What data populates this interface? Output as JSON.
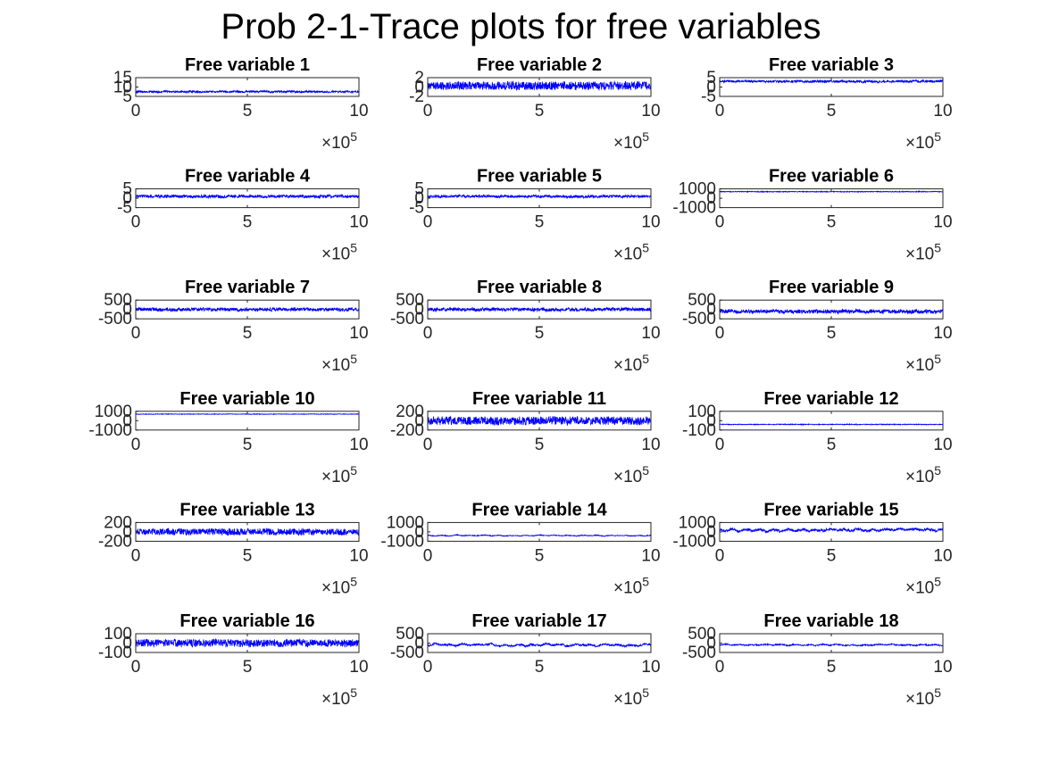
{
  "title": "Prob 2-1-Trace plots for free variables",
  "colors": {
    "trace": "#0000ff",
    "axes": "#262626",
    "text": "#000000"
  },
  "x_tick_labels": [
    "0",
    "5",
    "10"
  ],
  "x_exponent": {
    "base": "×10",
    "power": "5"
  },
  "chart_data": [
    {
      "type": "line",
      "title": "Free variable 1",
      "xlim": [
        0,
        10
      ],
      "ylim": [
        5,
        15
      ],
      "yticks": [
        "15",
        "10",
        "5"
      ],
      "level": 7.5,
      "amplitude": 0.5,
      "wander": 0.2
    },
    {
      "type": "line",
      "title": "Free variable 2",
      "xlim": [
        0,
        10
      ],
      "ylim": [
        -2,
        2
      ],
      "yticks": [
        "2",
        "0",
        "-2"
      ],
      "level": 0.3,
      "amplitude": 0.9,
      "wander": 0.1
    },
    {
      "type": "line",
      "title": "Free variable 3",
      "xlim": [
        0,
        10
      ],
      "ylim": [
        -5,
        5
      ],
      "yticks": [
        "5",
        "0",
        "-5"
      ],
      "level": 3,
      "amplitude": 0.6,
      "wander": 0.2
    },
    {
      "type": "line",
      "title": "Free variable 4",
      "xlim": [
        0,
        10
      ],
      "ylim": [
        -5,
        5
      ],
      "yticks": [
        "5",
        "0",
        "-5"
      ],
      "level": 1,
      "amplitude": 0.8,
      "wander": 0.2
    },
    {
      "type": "line",
      "title": "Free variable 5",
      "xlim": [
        0,
        10
      ],
      "ylim": [
        -5,
        5
      ],
      "yticks": [
        "5",
        "0",
        "-5"
      ],
      "level": 1,
      "amplitude": 0.7,
      "wander": 0.2
    },
    {
      "type": "line",
      "title": "Free variable 6",
      "xlim": [
        0,
        10
      ],
      "ylim": [
        -1000,
        1000
      ],
      "yticks": [
        "1000",
        "0",
        "-1000"
      ],
      "level": 700,
      "amplitude": 40,
      "wander": 10
    },
    {
      "type": "line",
      "title": "Free variable 7",
      "xlim": [
        0,
        10
      ],
      "ylim": [
        -500,
        500
      ],
      "yticks": [
        "500",
        "0",
        "-500"
      ],
      "level": 0,
      "amplitude": 90,
      "wander": 20
    },
    {
      "type": "line",
      "title": "Free variable 8",
      "xlim": [
        0,
        10
      ],
      "ylim": [
        -500,
        500
      ],
      "yticks": [
        "500",
        "0",
        "-500"
      ],
      "level": 0,
      "amplitude": 90,
      "wander": 20
    },
    {
      "type": "line",
      "title": "Free variable 9",
      "xlim": [
        0,
        10
      ],
      "ylim": [
        -500,
        500
      ],
      "yticks": [
        "500",
        "0",
        "-500"
      ],
      "level": -100,
      "amplitude": 100,
      "wander": 40
    },
    {
      "type": "line",
      "title": "Free variable 10",
      "xlim": [
        0,
        10
      ],
      "ylim": [
        -1000,
        1000
      ],
      "yticks": [
        "1000",
        "0",
        "-1000"
      ],
      "level": 700,
      "amplitude": 30,
      "wander": 10
    },
    {
      "type": "line",
      "title": "Free variable 11",
      "xlim": [
        0,
        10
      ],
      "ylim": [
        -200,
        200
      ],
      "yticks": [
        "200",
        "0",
        "-200"
      ],
      "level": 0,
      "amplitude": 90,
      "wander": 10
    },
    {
      "type": "line",
      "title": "Free variable 12",
      "xlim": [
        0,
        10
      ],
      "ylim": [
        -100,
        100
      ],
      "yticks": [
        "100",
        "0",
        "-100"
      ],
      "level": -40,
      "amplitude": 4,
      "wander": 1
    },
    {
      "type": "line",
      "title": "Free variable 13",
      "xlim": [
        0,
        10
      ],
      "ylim": [
        -200,
        200
      ],
      "yticks": [
        "200",
        "0",
        "-200"
      ],
      "level": 0,
      "amplitude": 70,
      "wander": 10
    },
    {
      "type": "line",
      "title": "Free variable 14",
      "xlim": [
        0,
        10
      ],
      "ylim": [
        -1000,
        1000
      ],
      "yticks": [
        "1000",
        "0",
        "-1000"
      ],
      "level": -400,
      "amplitude": 40,
      "wander": 60
    },
    {
      "type": "line",
      "title": "Free variable 15",
      "xlim": [
        0,
        10
      ],
      "ylim": [
        -1000,
        1000
      ],
      "yticks": [
        "1000",
        "0",
        "-1000"
      ],
      "level": 200,
      "amplitude": 120,
      "wander": 150
    },
    {
      "type": "line",
      "title": "Free variable 16",
      "xlim": [
        0,
        10
      ],
      "ylim": [
        -100,
        100
      ],
      "yticks": [
        "100",
        "0",
        "-100"
      ],
      "level": 0,
      "amplitude": 40,
      "wander": 5
    },
    {
      "type": "line",
      "title": "Free variable 17",
      "xlim": [
        0,
        10
      ],
      "ylim": [
        -500,
        500
      ],
      "yticks": [
        "500",
        "0",
        "-500"
      ],
      "level": -100,
      "amplitude": 50,
      "wander": 60
    },
    {
      "type": "line",
      "title": "Free variable 18",
      "xlim": [
        0,
        10
      ],
      "ylim": [
        -500,
        500
      ],
      "yticks": [
        "500",
        "0",
        "-500"
      ],
      "level": -100,
      "amplitude": 30,
      "wander": 40
    }
  ]
}
